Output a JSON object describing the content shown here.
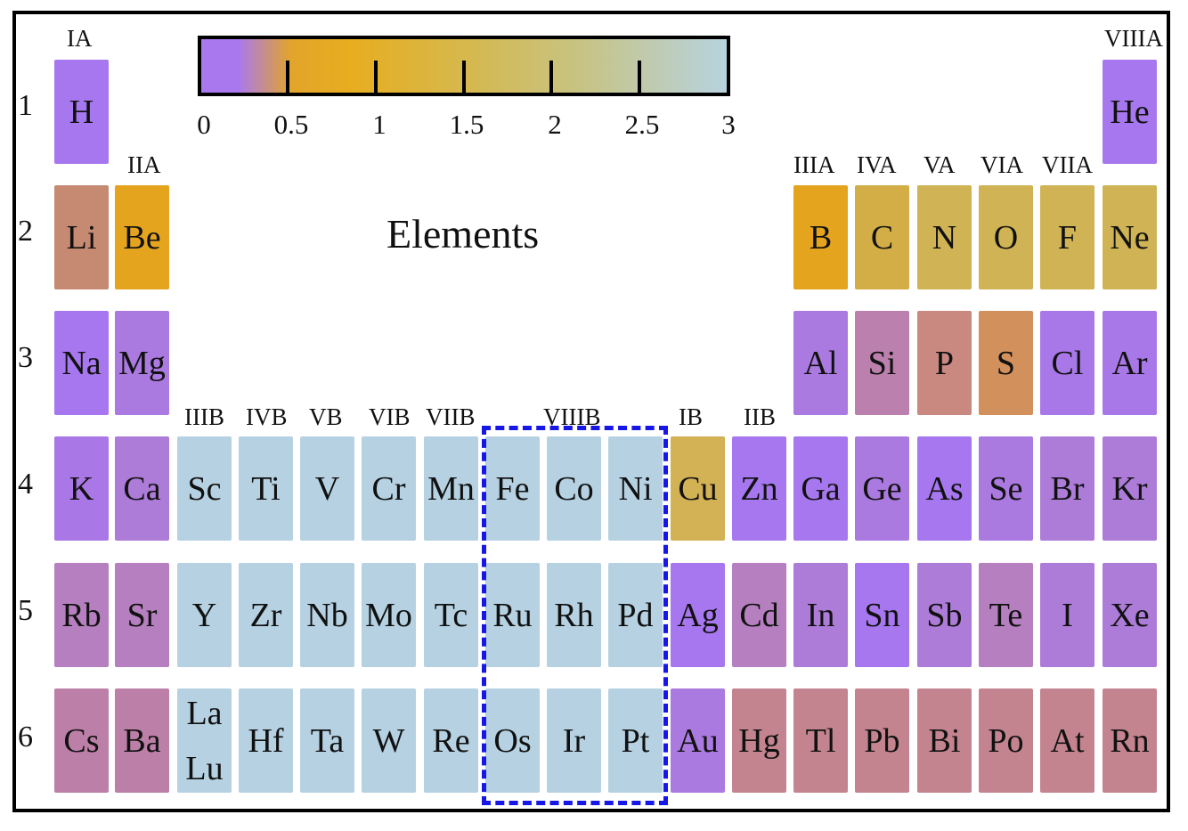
{
  "title": "Elements",
  "colorbar": {
    "ticks": [
      "0",
      "0.5",
      "1",
      "1.5",
      "2",
      "2.5",
      "3"
    ],
    "colors": [
      "#a978ef",
      "#e8ad1f",
      "#d6b84c",
      "#b7d3df"
    ]
  },
  "periods": [
    "1",
    "2",
    "3",
    "4",
    "5",
    "6"
  ],
  "groups": {
    "IA": "IA",
    "IIA": "IIA",
    "IIIB": "IIIB",
    "IVB": "IVB",
    "VB": "VB",
    "VIB": "VIB",
    "VIIB": "VIIB",
    "VIIIB": "VIIIB",
    "IB": "IB",
    "IIB": "IIB",
    "IIIA": "IIIA",
    "IVA": "IVA",
    "VA": "VA",
    "VIA": "VIA",
    "VIIA": "VIIA",
    "VIIIA": "VIIIA"
  },
  "highlight_group": "VIIIB",
  "elements": {
    "H": {
      "symbol": "H",
      "color": "#a777ef"
    },
    "He": {
      "symbol": "He",
      "color": "#a777ef"
    },
    "Li": {
      "symbol": "Li",
      "color": "#c68a72"
    },
    "Be": {
      "symbol": "Be",
      "color": "#e5a41d"
    },
    "B": {
      "symbol": "B",
      "color": "#e5a41d"
    },
    "C": {
      "symbol": "C",
      "color": "#d3ae47"
    },
    "N": {
      "symbol": "N",
      "color": "#d0b354"
    },
    "O": {
      "symbol": "O",
      "color": "#d0b354"
    },
    "F": {
      "symbol": "F",
      "color": "#d0b354"
    },
    "Ne": {
      "symbol": "Ne",
      "color": "#d0b354"
    },
    "Na": {
      "symbol": "Na",
      "color": "#a777ef"
    },
    "Mg": {
      "symbol": "Mg",
      "color": "#ab7ae0"
    },
    "Al": {
      "symbol": "Al",
      "color": "#ab7ae0"
    },
    "Si": {
      "symbol": "Si",
      "color": "#bb80ad"
    },
    "P": {
      "symbol": "P",
      "color": "#c98880"
    },
    "S": {
      "symbol": "S",
      "color": "#d2905c"
    },
    "Cl": {
      "symbol": "Cl",
      "color": "#a978e8"
    },
    "Ar": {
      "symbol": "Ar",
      "color": "#a978e8"
    },
    "K": {
      "symbol": "K",
      "color": "#a977e6"
    },
    "Ca": {
      "symbol": "Ca",
      "color": "#ad7bd8"
    },
    "Sc": {
      "symbol": "Sc",
      "color": "#b5d1e2"
    },
    "Ti": {
      "symbol": "Ti",
      "color": "#b5d1e2"
    },
    "V": {
      "symbol": "V",
      "color": "#b5d1e2"
    },
    "Cr": {
      "symbol": "Cr",
      "color": "#b5d1e2"
    },
    "Mn": {
      "symbol": "Mn",
      "color": "#b5d1e2"
    },
    "Fe": {
      "symbol": "Fe",
      "color": "#b5d1e2"
    },
    "Co": {
      "symbol": "Co",
      "color": "#b5d1e2"
    },
    "Ni": {
      "symbol": "Ni",
      "color": "#b5d1e2"
    },
    "Cu": {
      "symbol": "Cu",
      "color": "#d3b155"
    },
    "Zn": {
      "symbol": "Zn",
      "color": "#a777ef"
    },
    "Ga": {
      "symbol": "Ga",
      "color": "#a777ef"
    },
    "Ge": {
      "symbol": "Ge",
      "color": "#ab7ae0"
    },
    "As": {
      "symbol": "As",
      "color": "#a777ef"
    },
    "Se": {
      "symbol": "Se",
      "color": "#ab7ae0"
    },
    "Br": {
      "symbol": "Br",
      "color": "#ad7bd8"
    },
    "Kr": {
      "symbol": "Kr",
      "color": "#ad7bd8"
    },
    "Rb": {
      "symbol": "Rb",
      "color": "#b57fc0"
    },
    "Sr": {
      "symbol": "Sr",
      "color": "#b57fc0"
    },
    "Y": {
      "symbol": "Y",
      "color": "#b5d1e2"
    },
    "Zr": {
      "symbol": "Zr",
      "color": "#b5d1e2"
    },
    "Nb": {
      "symbol": "Nb",
      "color": "#b5d1e2"
    },
    "Mo": {
      "symbol": "Mo",
      "color": "#b5d1e2"
    },
    "Tc": {
      "symbol": "Tc",
      "color": "#b5d1e2"
    },
    "Ru": {
      "symbol": "Ru",
      "color": "#b5d1e2"
    },
    "Rh": {
      "symbol": "Rh",
      "color": "#b5d1e2"
    },
    "Pd": {
      "symbol": "Pd",
      "color": "#b5d1e2"
    },
    "Ag": {
      "symbol": "Ag",
      "color": "#a777ef"
    },
    "Cd": {
      "symbol": "Cd",
      "color": "#b57fc0"
    },
    "In": {
      "symbol": "In",
      "color": "#ad7bd8"
    },
    "Sn": {
      "symbol": "Sn",
      "color": "#a777ef"
    },
    "Sb": {
      "symbol": "Sb",
      "color": "#ad7bd8"
    },
    "Te": {
      "symbol": "Te",
      "color": "#b57fc0"
    },
    "I": {
      "symbol": "I",
      "color": "#ad7bd8"
    },
    "Xe": {
      "symbol": "Xe",
      "color": "#ad7bd8"
    },
    "Cs": {
      "symbol": "Cs",
      "color": "#bc80a8"
    },
    "Ba": {
      "symbol": "Ba",
      "color": "#bc80a8"
    },
    "LaLu": {
      "symbol1": "La",
      "symbol2": "Lu",
      "color": "#b5d1e2"
    },
    "Hf": {
      "symbol": "Hf",
      "color": "#b5d1e2"
    },
    "Ta": {
      "symbol": "Ta",
      "color": "#b5d1e2"
    },
    "W": {
      "symbol": "W",
      "color": "#b5d1e2"
    },
    "Re": {
      "symbol": "Re",
      "color": "#b5d1e2"
    },
    "Os": {
      "symbol": "Os",
      "color": "#b5d1e2"
    },
    "Ir": {
      "symbol": "Ir",
      "color": "#b5d1e2"
    },
    "Pt": {
      "symbol": "Pt",
      "color": "#b5d1e2"
    },
    "Au": {
      "symbol": "Au",
      "color": "#ab7ae0"
    },
    "Hg": {
      "symbol": "Hg",
      "color": "#c3848f"
    },
    "Tl": {
      "symbol": "Tl",
      "color": "#c3848f"
    },
    "Pb": {
      "symbol": "Pb",
      "color": "#c3848f"
    },
    "Bi": {
      "symbol": "Bi",
      "color": "#c3848f"
    },
    "Po": {
      "symbol": "Po",
      "color": "#c3848f"
    },
    "At": {
      "symbol": "At",
      "color": "#c3848f"
    },
    "Rn": {
      "symbol": "Rn",
      "color": "#c3848f"
    }
  }
}
